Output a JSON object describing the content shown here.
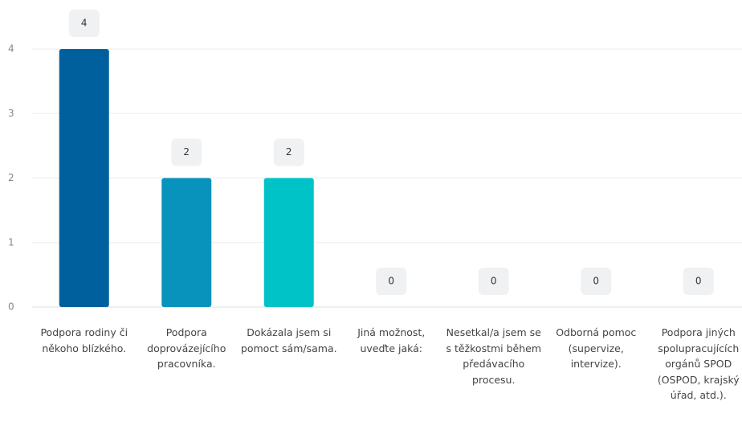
{
  "chart_data": {
    "type": "bar",
    "categories": [
      "Podpora rodiny či někoho blízkého.",
      "Podpora doprovázejícího pracovníka.",
      "Dokázala jsem si pomoct sám/sama.",
      "Jiná možnost, uveďte jaká:",
      "Nesetkal/a jsem se s těžkostmi během předávacího procesu.",
      "Odborná pomoc (supervize, intervize).",
      "Podpora jiných spolupracujících orgánů SPOD (OSPOD, krajský úřad, atd.)."
    ],
    "values": [
      4,
      2,
      2,
      0,
      0,
      0,
      0
    ],
    "palette": [
      "#00609e",
      "#0793bb",
      "#00c3c8"
    ],
    "ylim": [
      0,
      4
    ],
    "yticks": [
      0,
      1,
      2,
      3,
      4
    ],
    "grid": true
  }
}
